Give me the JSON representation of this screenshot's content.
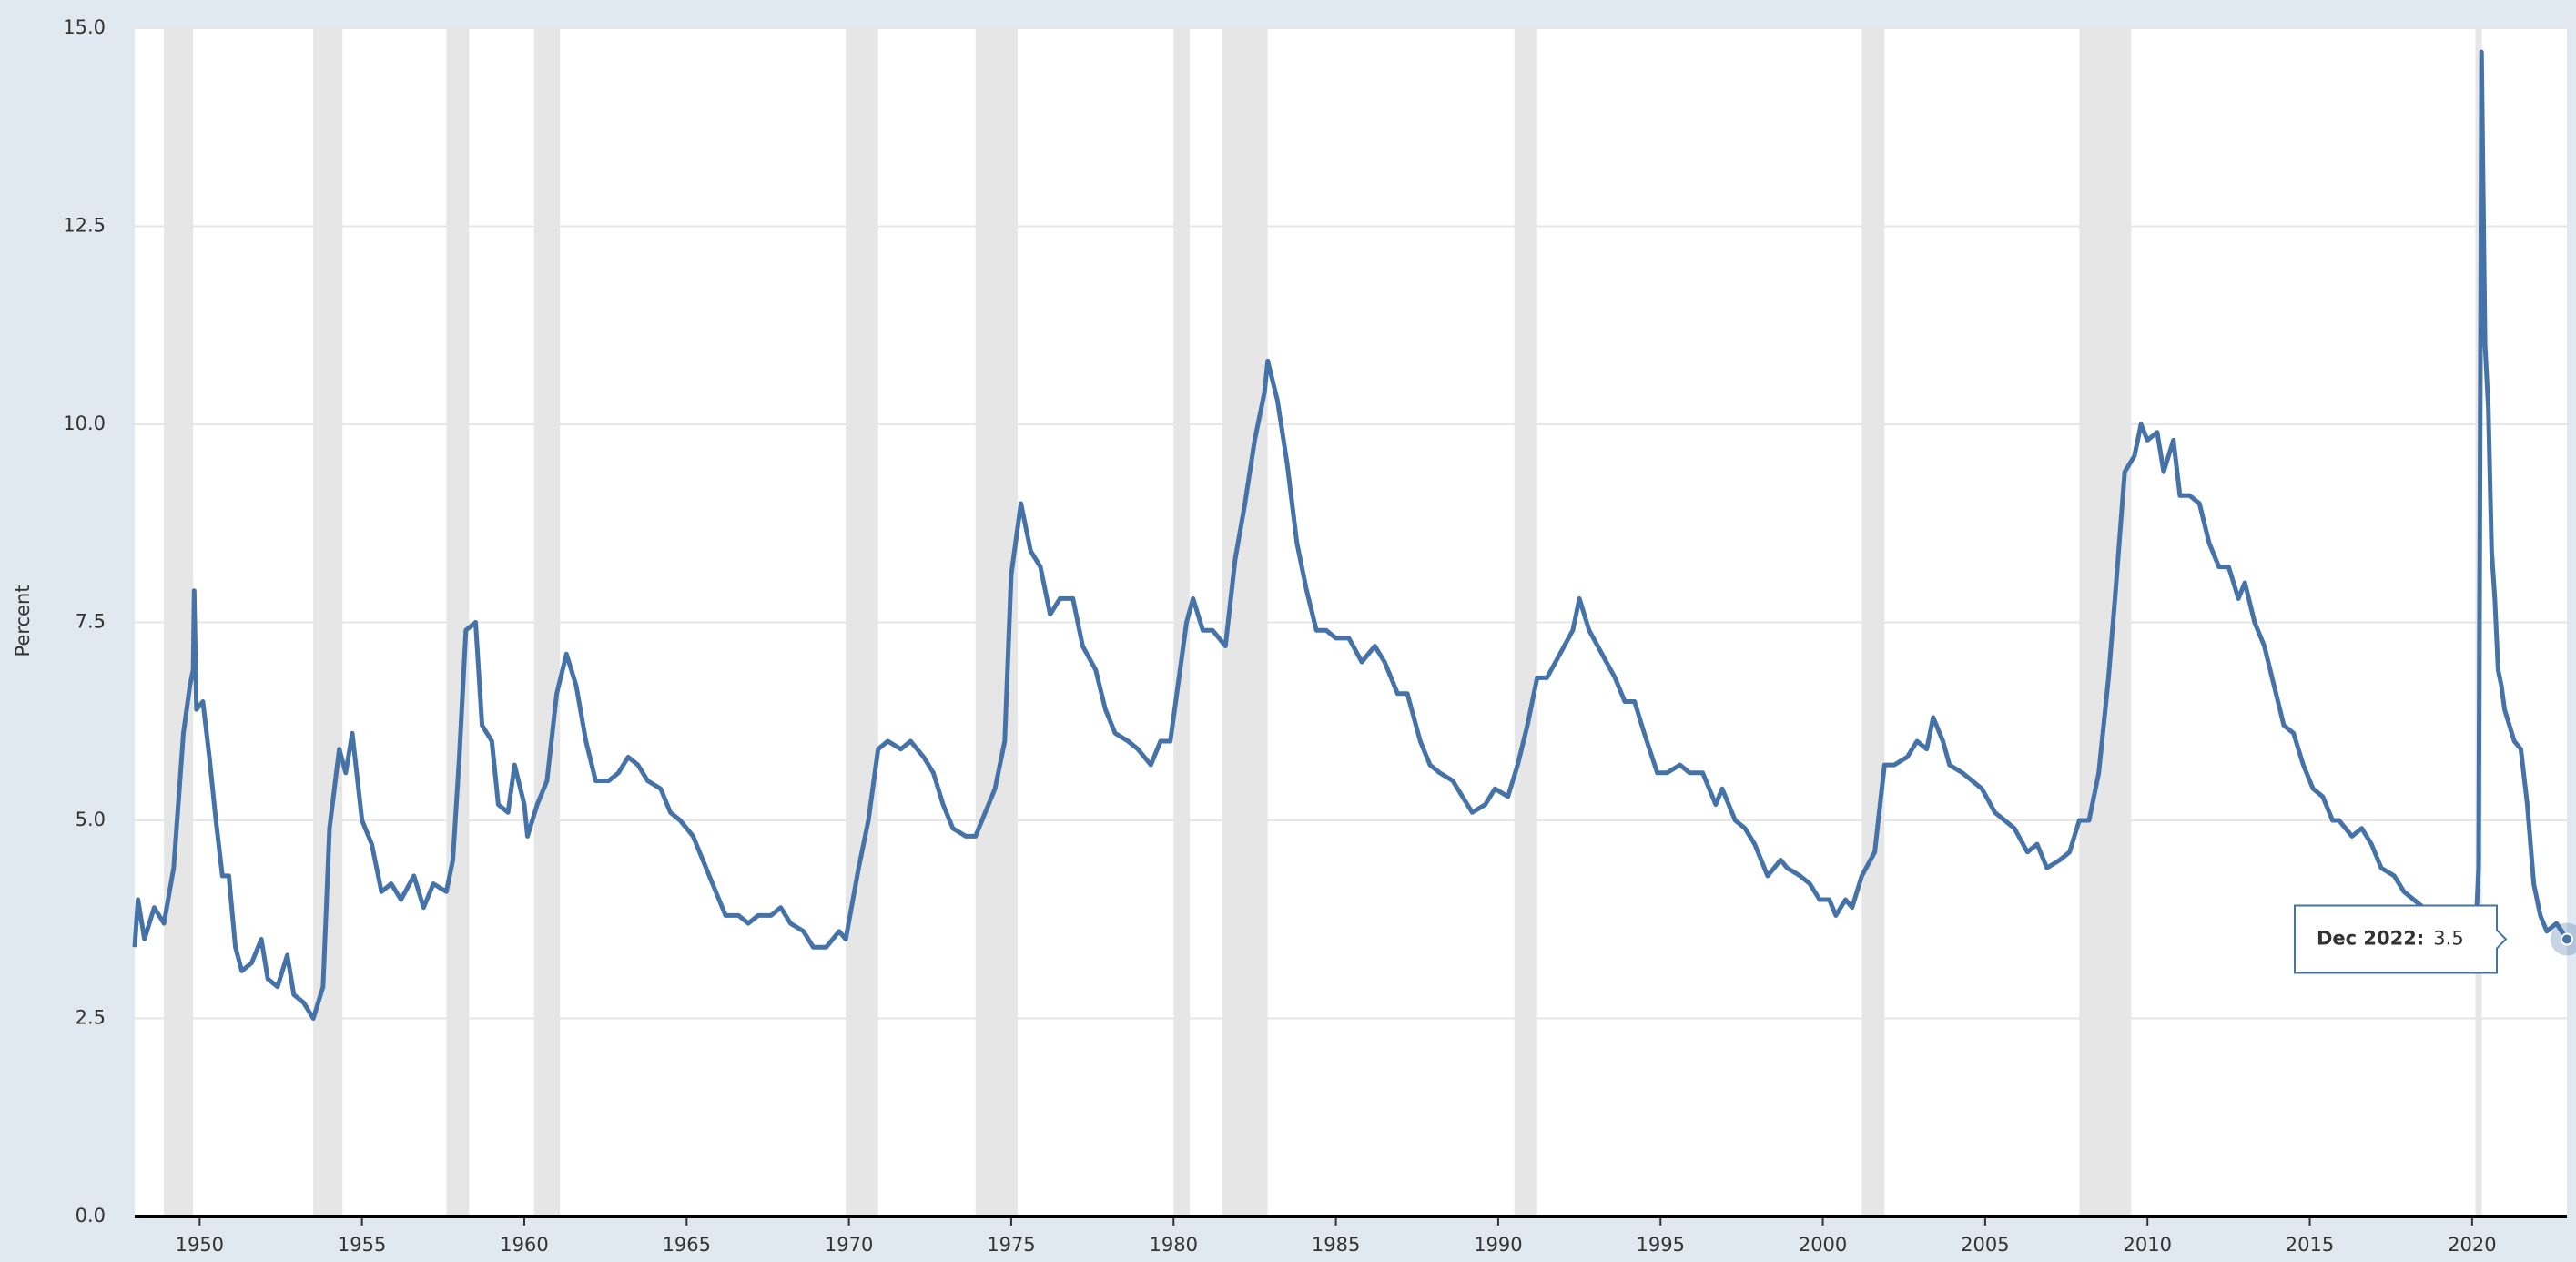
{
  "chart_data": {
    "type": "line",
    "y_label": "Percent",
    "xlim": [
      1948.0,
      2022.92
    ],
    "ylim": [
      0,
      15
    ],
    "xticks": [
      1950,
      1955,
      1960,
      1965,
      1970,
      1975,
      1980,
      1985,
      1990,
      1995,
      2000,
      2005,
      2010,
      2015,
      2020
    ],
    "yticks": [
      {
        "value": 0,
        "label": "0.0"
      },
      2.5,
      {
        "value": 5,
        "label": "5.0"
      },
      7.5,
      {
        "value": 10,
        "label": "10.0"
      },
      12.5,
      {
        "value": 15,
        "label": "15.0"
      }
    ],
    "grid": true,
    "recessions": [
      [
        1948.9,
        1949.8
      ],
      [
        1953.5,
        1954.4
      ],
      [
        1957.6,
        1958.3
      ],
      [
        1960.3,
        1961.1
      ],
      [
        1969.9,
        1970.9
      ],
      [
        1973.9,
        1975.2
      ],
      [
        1980.0,
        1980.5
      ],
      [
        1981.5,
        1982.9
      ],
      [
        1990.5,
        1991.2
      ],
      [
        2001.2,
        2001.9
      ],
      [
        2007.9,
        2009.5
      ],
      [
        2020.1,
        2020.3
      ]
    ],
    "recession_color": "#e6e6e6",
    "series": [
      {
        "color": "#4572a7",
        "x": [
          1948.0,
          1948.1,
          1948.3,
          1948.6,
          1948.9,
          1949.2,
          1949.5,
          1949.7,
          1949.8,
          1949.83,
          1949.9,
          1950.1,
          1950.3,
          1950.5,
          1950.7,
          1950.9,
          1951.1,
          1951.3,
          1951.6,
          1951.9,
          1952.1,
          1952.4,
          1952.7,
          1952.9,
          1953.2,
          1953.5,
          1953.8,
          1954.0,
          1954.3,
          1954.5,
          1954.7,
          1955.0,
          1955.3,
          1955.6,
          1955.9,
          1956.2,
          1956.6,
          1956.9,
          1957.2,
          1957.6,
          1957.8,
          1958.0,
          1958.2,
          1958.5,
          1958.7,
          1959.0,
          1959.2,
          1959.5,
          1959.7,
          1960.0,
          1960.1,
          1960.4,
          1960.7,
          1961.0,
          1961.3,
          1961.6,
          1961.9,
          1962.2,
          1962.6,
          1962.9,
          1963.2,
          1963.5,
          1963.8,
          1964.2,
          1964.5,
          1964.8,
          1965.2,
          1965.5,
          1965.8,
          1966.2,
          1966.6,
          1966.9,
          1967.2,
          1967.6,
          1967.9,
          1968.2,
          1968.6,
          1968.9,
          1969.3,
          1969.7,
          1969.9,
          1970.3,
          1970.6,
          1970.9,
          1971.2,
          1971.6,
          1971.9,
          1972.3,
          1972.6,
          1972.9,
          1973.2,
          1973.6,
          1973.9,
          1974.2,
          1974.5,
          1974.8,
          1975.0,
          1975.3,
          1975.6,
          1975.9,
          1976.2,
          1976.5,
          1976.9,
          1977.2,
          1977.6,
          1977.9,
          1978.2,
          1978.6,
          1978.9,
          1979.3,
          1979.6,
          1979.9,
          1980.2,
          1980.4,
          1980.6,
          1980.9,
          1981.2,
          1981.6,
          1981.9,
          1982.2,
          1982.5,
          1982.8,
          1982.9,
          1983.2,
          1983.5,
          1983.8,
          1984.1,
          1984.4,
          1984.7,
          1985.0,
          1985.4,
          1985.8,
          1986.2,
          1986.5,
          1986.9,
          1987.2,
          1987.6,
          1987.9,
          1988.2,
          1988.6,
          1988.9,
          1989.2,
          1989.6,
          1989.9,
          1990.3,
          1990.6,
          1990.9,
          1991.2,
          1991.5,
          1991.9,
          1992.3,
          1992.5,
          1992.8,
          1993.2,
          1993.6,
          1993.9,
          1994.2,
          1994.5,
          1994.9,
          1995.2,
          1995.6,
          1995.9,
          1996.3,
          1996.7,
          1996.9,
          1997.3,
          1997.6,
          1997.9,
          1998.3,
          1998.7,
          1998.9,
          1999.3,
          1999.6,
          1999.9,
          2000.2,
          2000.4,
          2000.7,
          2000.9,
          2001.2,
          2001.6,
          2001.9,
          2002.2,
          2002.6,
          2002.9,
          2003.2,
          2003.4,
          2003.7,
          2003.9,
          2004.3,
          2004.6,
          2004.9,
          2005.3,
          2005.6,
          2005.9,
          2006.3,
          2006.6,
          2006.9,
          2007.3,
          2007.6,
          2007.9,
          2008.2,
          2008.5,
          2008.8,
          2009.0,
          2009.3,
          2009.6,
          2009.8,
          2010.0,
          2010.3,
          2010.5,
          2010.8,
          2011.0,
          2011.3,
          2011.6,
          2011.9,
          2012.2,
          2012.5,
          2012.8,
          2013.0,
          2013.3,
          2013.6,
          2013.9,
          2014.2,
          2014.5,
          2014.8,
          2015.1,
          2015.4,
          2015.7,
          2015.9,
          2016.3,
          2016.6,
          2016.9,
          2017.2,
          2017.6,
          2017.9,
          2018.2,
          2018.5,
          2018.9,
          2019.3,
          2019.6,
          2019.9,
          2020.1,
          2020.2,
          2020.29,
          2020.4,
          2020.5,
          2020.6,
          2020.7,
          2020.8,
          2020.9,
          2021.0,
          2021.3,
          2021.5,
          2021.7,
          2021.9,
          2022.1,
          2022.3,
          2022.6,
          2022.92
        ],
        "values": [
          3.4,
          4.0,
          3.5,
          3.9,
          3.7,
          4.4,
          6.1,
          6.7,
          6.9,
          7.9,
          6.4,
          6.5,
          5.8,
          5.0,
          4.3,
          4.3,
          3.4,
          3.1,
          3.2,
          3.5,
          3.0,
          2.9,
          3.3,
          2.8,
          2.7,
          2.5,
          2.9,
          4.9,
          5.9,
          5.6,
          6.1,
          5.0,
          4.7,
          4.1,
          4.2,
          4.0,
          4.3,
          3.9,
          4.2,
          4.1,
          4.5,
          5.8,
          7.4,
          7.5,
          6.2,
          6.0,
          5.2,
          5.1,
          5.7,
          5.2,
          4.8,
          5.2,
          5.5,
          6.6,
          7.1,
          6.7,
          6.0,
          5.5,
          5.5,
          5.6,
          5.8,
          5.7,
          5.5,
          5.4,
          5.1,
          5.0,
          4.8,
          4.5,
          4.2,
          3.8,
          3.8,
          3.7,
          3.8,
          3.8,
          3.9,
          3.7,
          3.6,
          3.4,
          3.4,
          3.6,
          3.5,
          4.4,
          5.0,
          5.9,
          6.0,
          5.9,
          6.0,
          5.8,
          5.6,
          5.2,
          4.9,
          4.8,
          4.8,
          5.1,
          5.4,
          6.0,
          8.1,
          9.0,
          8.4,
          8.2,
          7.6,
          7.8,
          7.8,
          7.2,
          6.9,
          6.4,
          6.1,
          6.0,
          5.9,
          5.7,
          6.0,
          6.0,
          6.9,
          7.5,
          7.8,
          7.4,
          7.4,
          7.2,
          8.3,
          9.0,
          9.8,
          10.4,
          10.8,
          10.3,
          9.5,
          8.5,
          7.9,
          7.4,
          7.4,
          7.3,
          7.3,
          7.0,
          7.2,
          7.0,
          6.6,
          6.6,
          6.0,
          5.7,
          5.6,
          5.5,
          5.3,
          5.1,
          5.2,
          5.4,
          5.3,
          5.7,
          6.2,
          6.8,
          6.8,
          7.1,
          7.4,
          7.8,
          7.4,
          7.1,
          6.8,
          6.5,
          6.5,
          6.1,
          5.6,
          5.6,
          5.7,
          5.6,
          5.6,
          5.2,
          5.4,
          5.0,
          4.9,
          4.7,
          4.3,
          4.5,
          4.4,
          4.3,
          4.2,
          4.0,
          4.0,
          3.8,
          4.0,
          3.9,
          4.3,
          4.6,
          5.7,
          5.7,
          5.8,
          6.0,
          5.9,
          6.3,
          6.0,
          5.7,
          5.6,
          5.5,
          5.4,
          5.1,
          5.0,
          4.9,
          4.6,
          4.7,
          4.4,
          4.5,
          4.6,
          5.0,
          5.0,
          5.6,
          6.8,
          7.8,
          9.4,
          9.6,
          10.0,
          9.8,
          9.9,
          9.4,
          9.8,
          9.1,
          9.1,
          9.0,
          8.5,
          8.2,
          8.2,
          7.8,
          8.0,
          7.5,
          7.2,
          6.7,
          6.2,
          6.1,
          5.7,
          5.4,
          5.3,
          5.0,
          5.0,
          4.8,
          4.9,
          4.7,
          4.4,
          4.3,
          4.1,
          4.0,
          3.9,
          3.9,
          3.6,
          3.6,
          3.6,
          3.5,
          4.4,
          14.7,
          11.0,
          10.2,
          8.4,
          7.8,
          6.9,
          6.7,
          6.4,
          6.0,
          5.9,
          5.2,
          4.2,
          3.8,
          3.6,
          3.7,
          3.5
        ]
      }
    ],
    "tooltip": {
      "label": "Dec 2022:",
      "value": 3.5
    }
  }
}
